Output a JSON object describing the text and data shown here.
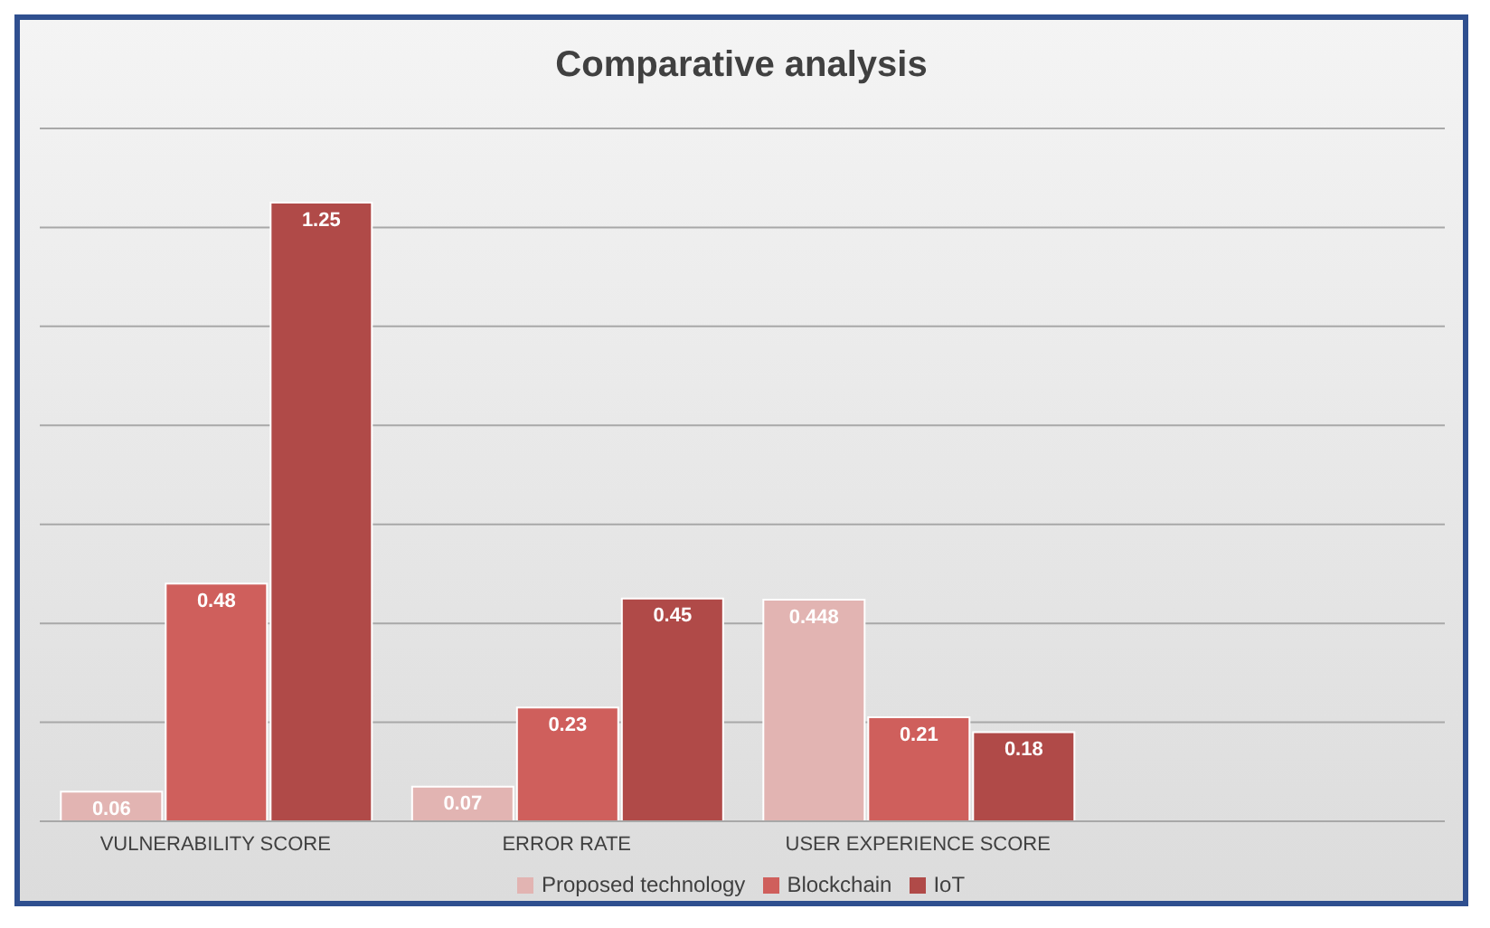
{
  "chart_data": {
    "type": "bar",
    "title": "Comparative analysis",
    "categories": [
      "VULNERABILITY SCORE",
      "ERROR RATE",
      "USER EXPERIENCE SCORE",
      null
    ],
    "series": [
      {
        "name": "Proposed technology",
        "color": "#e2b4b2",
        "values": [
          0.06,
          0.07,
          0.448,
          null
        ]
      },
      {
        "name": "Blockchain",
        "color": "#cf5f5c",
        "values": [
          0.48,
          0.23,
          0.21,
          null
        ]
      },
      {
        "name": "IoT",
        "color": "#b04a48",
        "values": [
          1.25,
          0.45,
          0.18,
          null
        ]
      }
    ],
    "tick_labels": "x",
    "grid": "y",
    "legend": "bottom",
    "data_labels": true
  }
}
